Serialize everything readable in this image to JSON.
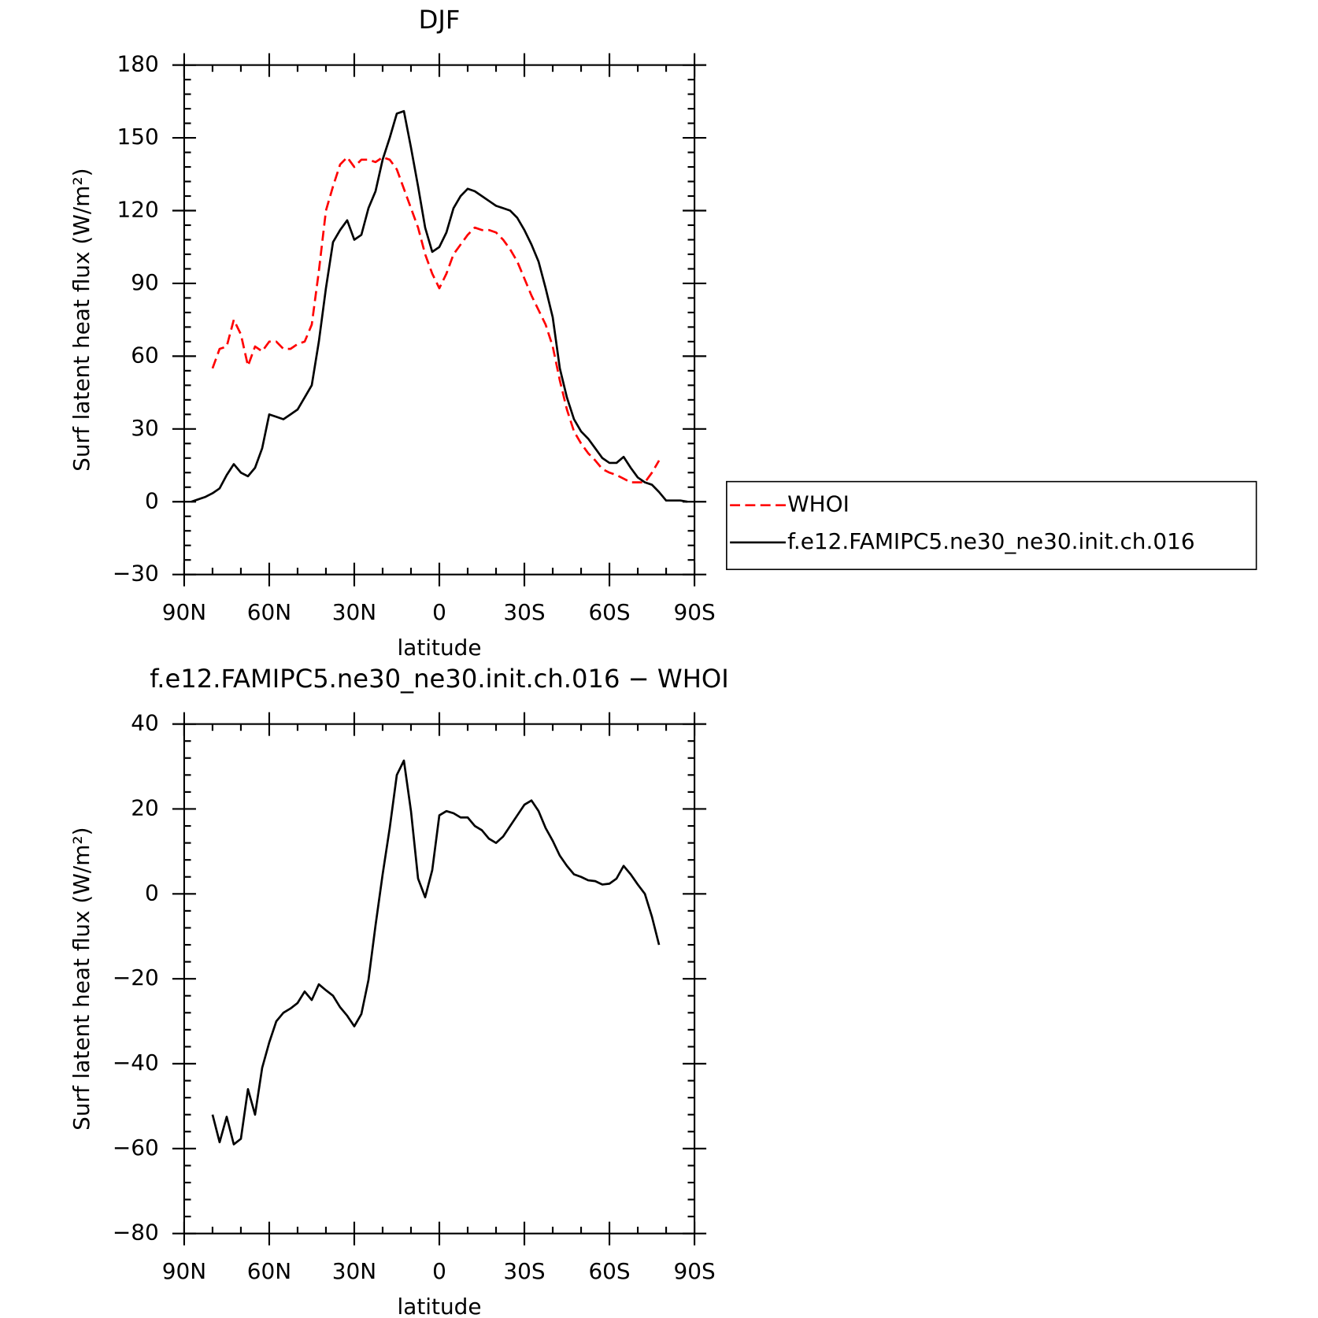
{
  "chart_data": [
    {
      "type": "line",
      "title": "DJF",
      "x_label": "latitude",
      "y_label": "Surf latent heat flux (W/m²)",
      "x": [
        87.5,
        85,
        82.5,
        80,
        77.5,
        75,
        72.5,
        70,
        67.5,
        65,
        62.5,
        60,
        57.5,
        55,
        52.5,
        50,
        47.5,
        45,
        42.5,
        40,
        37.5,
        35,
        32.5,
        30,
        27.5,
        25,
        22.5,
        20,
        17.5,
        15,
        12.5,
        10,
        7.5,
        5,
        2.5,
        0,
        -2.5,
        -5,
        -7.5,
        -10,
        -12.5,
        -15,
        -17.5,
        -20,
        -22.5,
        -25,
        -27.5,
        -30,
        -32.5,
        -35,
        -37.5,
        -40,
        -42.5,
        -45,
        -47.5,
        -50,
        -52.5,
        -55,
        -57.5,
        -60,
        -62.5,
        -65,
        -67.5,
        -70,
        -72.5,
        -75,
        -77.5,
        -80,
        -82.5,
        -85,
        -87.5
      ],
      "series": [
        {
          "name": "WHOI",
          "color": "#ff0000",
          "line_style": "dashed",
          "values": [
            null,
            null,
            null,
            55,
            63,
            64,
            75,
            69,
            56,
            64,
            62,
            66,
            66,
            63,
            63,
            65,
            66,
            73,
            95,
            120,
            130,
            139,
            142,
            138,
            141,
            141,
            140,
            142,
            141,
            137,
            129,
            121,
            113,
            102,
            94,
            88,
            94,
            102,
            106,
            110,
            113,
            112,
            112,
            111,
            108,
            104,
            99,
            92,
            85,
            79,
            73,
            64,
            50,
            38,
            29,
            24,
            20,
            17,
            13.5,
            12,
            11,
            9.5,
            8,
            8,
            8,
            12,
            17,
            null,
            null,
            null,
            null
          ]
        },
        {
          "name": "f.e12.FAMIPC5.ne30_ne30.init.ch.016",
          "color": "#000000",
          "line_style": "solid",
          "values": [
            0,
            1,
            2,
            3.5,
            5.5,
            11,
            15.5,
            12,
            10.5,
            14,
            22,
            36,
            35,
            34,
            36,
            38,
            43,
            48,
            66,
            88,
            107,
            112,
            116,
            108,
            110,
            121,
            128,
            141,
            150,
            160,
            161,
            146,
            130,
            113,
            103,
            105,
            111,
            121,
            126,
            129,
            128,
            126,
            124,
            122,
            121,
            120,
            117,
            112,
            106,
            99,
            88,
            76,
            55,
            43,
            34,
            29,
            26,
            22,
            18,
            16,
            16,
            18.5,
            14,
            10,
            8,
            7,
            4,
            0.5,
            0.5,
            0.5,
            0
          ]
        }
      ],
      "xlim": [
        90,
        -90
      ],
      "xticks": [
        {
          "value": 90,
          "label": "90N"
        },
        {
          "value": 60,
          "label": "60N"
        },
        {
          "value": 30,
          "label": "30N"
        },
        0,
        {
          "value": -30,
          "label": "30S"
        },
        {
          "value": -60,
          "label": "60S"
        },
        {
          "value": -90,
          "label": "90S"
        }
      ],
      "ylim": [
        -30,
        180
      ],
      "yticks": [
        {
          "value": -30,
          "label": "−30"
        },
        0,
        30,
        60,
        90,
        120,
        150,
        180
      ],
      "legend": "outside-right"
    },
    {
      "type": "line",
      "title": "f.e12.FAMIPC5.ne30_ne30.init.ch.016 − WHOI",
      "x_label": "latitude",
      "y_label": "Surf latent heat flux (W/m²)",
      "x": [
        87.5,
        85,
        82.5,
        80,
        77.5,
        75,
        72.5,
        70,
        67.5,
        65,
        62.5,
        60,
        57.5,
        55,
        52.5,
        50,
        47.5,
        45,
        42.5,
        40,
        37.5,
        35,
        32.5,
        30,
        27.5,
        25,
        22.5,
        20,
        17.5,
        15,
        12.5,
        10,
        7.5,
        5,
        2.5,
        0,
        -2.5,
        -5,
        -7.5,
        -10,
        -12.5,
        -15,
        -17.5,
        -20,
        -22.5,
        -25,
        -27.5,
        -30,
        -32.5,
        -35,
        -37.5,
        -40,
        -42.5,
        -45,
        -47.5,
        -50,
        -52.5,
        -55,
        -57.5,
        -60,
        -62.5,
        -65,
        -67.5,
        -70,
        -72.5,
        -75,
        -77.5,
        -80,
        -82.5,
        -85,
        -87.5
      ],
      "color": "#000000",
      "values": [
        null,
        null,
        null,
        -52,
        -58.5,
        -52.5,
        -59,
        -57.7,
        -46,
        -52,
        -41,
        -35,
        -30,
        -28,
        -27,
        -25.7,
        -23,
        -25,
        -21.3,
        -22.7,
        -24,
        -26.7,
        -28.7,
        -31.2,
        -28.3,
        -20.3,
        -7.4,
        4.6,
        15.5,
        28,
        31.4,
        19.5,
        3.6,
        -0.8,
        5.6,
        18.5,
        19.5,
        19,
        18,
        18,
        16,
        15,
        13,
        12,
        13.5,
        16,
        18.5,
        21,
        22,
        19.5,
        15.5,
        12.5,
        9,
        6.6,
        4.6,
        4,
        3.2,
        3,
        2.2,
        2.4,
        3.6,
        6.6,
        4.6,
        2.2,
        0,
        -5.4,
        -12,
        null,
        null,
        null,
        null
      ],
      "xlim": [
        90,
        -90
      ],
      "xticks": [
        {
          "value": 90,
          "label": "90N"
        },
        {
          "value": 60,
          "label": "60N"
        },
        {
          "value": 30,
          "label": "30N"
        },
        0,
        {
          "value": -30,
          "label": "30S"
        },
        {
          "value": -60,
          "label": "60S"
        },
        {
          "value": -90,
          "label": "90S"
        }
      ],
      "ylim": [
        -80,
        40
      ],
      "yticks": [
        {
          "value": -80,
          "label": "−80"
        },
        {
          "value": -60,
          "label": "−60"
        },
        {
          "value": -40,
          "label": "−40"
        },
        {
          "value": -20,
          "label": "−20"
        },
        0,
        20,
        40
      ]
    }
  ]
}
